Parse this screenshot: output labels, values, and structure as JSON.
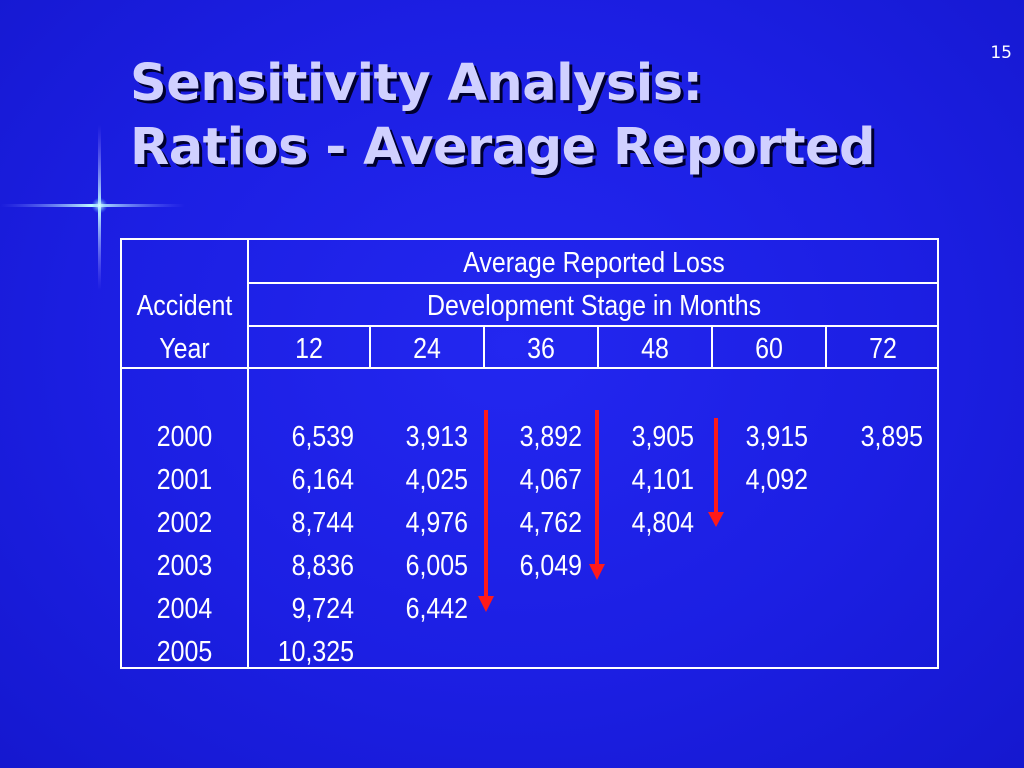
{
  "slide_number": "15",
  "title": {
    "line1": "Sensitivity Analysis:",
    "line2": "Ratios - Average Reported"
  },
  "table": {
    "header_top": "Average Reported Loss",
    "header_sub": "Development Stage in Months",
    "row_header_line1": "Accident",
    "row_header_line2": "Year",
    "columns": [
      "12",
      "24",
      "36",
      "48",
      "60",
      "72"
    ],
    "rows": [
      {
        "year": "2000",
        "values": [
          "6,539",
          "3,913",
          "3,892",
          "3,905",
          "3,915",
          "3,895"
        ]
      },
      {
        "year": "2001",
        "values": [
          "6,164",
          "4,025",
          "4,067",
          "4,101",
          "4,092",
          ""
        ]
      },
      {
        "year": "2002",
        "values": [
          "8,744",
          "4,976",
          "4,762",
          "4,804",
          "",
          ""
        ]
      },
      {
        "year": "2003",
        "values": [
          "8,836",
          "6,005",
          "6,049",
          "",
          "",
          ""
        ]
      },
      {
        "year": "2004",
        "values": [
          "9,724",
          "6,442",
          "",
          "",
          "",
          ""
        ]
      },
      {
        "year": "2005",
        "values": [
          "10,325",
          "",
          "",
          "",
          "",
          ""
        ]
      }
    ]
  },
  "colors": {
    "background": "#1c1fe3",
    "arrow": "#ff1a1a",
    "title": "#d0d0ff"
  },
  "icons": [
    "sparkle-star-icon",
    "down-arrow-icon"
  ]
}
